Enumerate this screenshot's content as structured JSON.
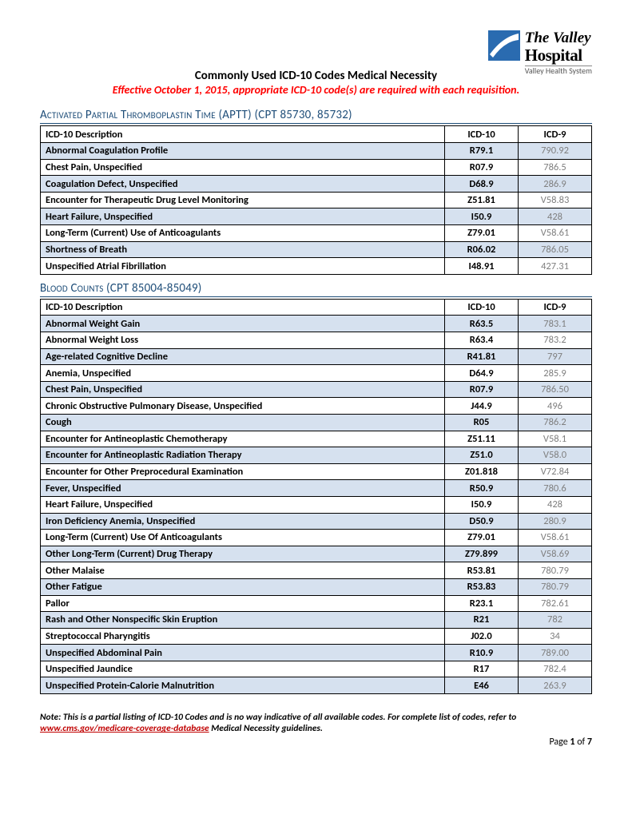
{
  "logo": {
    "line1": "The Valley",
    "line2": "Hospital",
    "line3": "Valley Health System",
    "mark_bg": "#2a6bb0",
    "mark_swoosh": "#ffffff"
  },
  "title": "Commonly Used ICD-10 Codes Medical Necessity",
  "subtitle": "Effective October 1, 2015, appropriate ICD-10 code(s) are required with each requisition.",
  "columns": {
    "desc": "ICD-10 Description",
    "icd10": "ICD-10",
    "icd9": "ICD-9"
  },
  "colors": {
    "section_title": "#1f4e79",
    "subtitle": "#ff0000",
    "row_shade": "#d6e1ef",
    "icd9_text": "#7f7f7f",
    "border": "#000000",
    "link": "#c00000"
  },
  "sections": [
    {
      "title": "Activated Partial Thromboplastin Time (APTT) (CPT 85730, 85732)",
      "rows": [
        {
          "desc": "Abnormal Coagulation Profile",
          "icd10": "R79.1",
          "icd9": "790.92",
          "shade": true
        },
        {
          "desc": "Chest Pain, Unspecified",
          "icd10": "R07.9",
          "icd9": "786.5",
          "shade": false
        },
        {
          "desc": "Coagulation Defect, Unspecified",
          "icd10": "D68.9",
          "icd9": "286.9",
          "shade": true
        },
        {
          "desc": "Encounter for Therapeutic Drug Level Monitoring",
          "icd10": "Z51.81",
          "icd9": "V58.83",
          "shade": false
        },
        {
          "desc": "Heart Failure, Unspecified",
          "icd10": "I50.9",
          "icd9": "428",
          "shade": true
        },
        {
          "desc": "Long-Term (Current) Use of Anticoagulants",
          "icd10": "Z79.01",
          "icd9": "V58.61",
          "shade": false
        },
        {
          "desc": "Shortness of Breath",
          "icd10": "R06.02",
          "icd9": "786.05",
          "shade": true
        },
        {
          "desc": "Unspecified Atrial Fibrillation",
          "icd10": "I48.91",
          "icd9": "427.31",
          "shade": false
        }
      ]
    },
    {
      "title": "Blood Counts (CPT 85004-85049)",
      "rows": [
        {
          "desc": "Abnormal Weight Gain",
          "icd10": "R63.5",
          "icd9": "783.1",
          "shade": true
        },
        {
          "desc": "Abnormal Weight Loss",
          "icd10": "R63.4",
          "icd9": "783.2",
          "shade": false
        },
        {
          "desc": "Age-related Cognitive Decline",
          "icd10": "R41.81",
          "icd9": "797",
          "shade": true
        },
        {
          "desc": "Anemia, Unspecified",
          "icd10": "D64.9",
          "icd9": "285.9",
          "shade": false
        },
        {
          "desc": "Chest Pain, Unspecified",
          "icd10": "R07.9",
          "icd9": "786.50",
          "shade": true
        },
        {
          "desc": "Chronic Obstructive Pulmonary Disease, Unspecified",
          "icd10": "J44.9",
          "icd9": "496",
          "shade": false
        },
        {
          "desc": "Cough",
          "icd10": "R05",
          "icd9": "786.2",
          "shade": true
        },
        {
          "desc": "Encounter for Antineoplastic Chemotherapy",
          "icd10": "Z51.11",
          "icd9": "V58.1",
          "shade": false
        },
        {
          "desc": "Encounter for Antineoplastic Radiation Therapy",
          "icd10": "Z51.0",
          "icd9": "V58.0",
          "shade": true
        },
        {
          "desc": "Encounter for Other Preprocedural Examination",
          "icd10": "Z01.818",
          "icd9": "V72.84",
          "shade": false
        },
        {
          "desc": "Fever, Unspecified",
          "icd10": "R50.9",
          "icd9": "780.6",
          "shade": true
        },
        {
          "desc": "Heart Failure, Unspecified",
          "icd10": "I50.9",
          "icd9": "428",
          "shade": false
        },
        {
          "desc": "Iron Deficiency Anemia, Unspecified",
          "icd10": "D50.9",
          "icd9": "280.9",
          "shade": true
        },
        {
          "desc": "Long-Term (Current) Use Of Anticoagulants",
          "icd10": "Z79.01",
          "icd9": "V58.61",
          "shade": false
        },
        {
          "desc": "Other Long-Term (Current) Drug Therapy",
          "icd10": "Z79.899",
          "icd9": "V58.69",
          "shade": true
        },
        {
          "desc": "Other Malaise",
          "icd10": "R53.81",
          "icd9": "780.79",
          "shade": false
        },
        {
          "desc": "Other Fatigue",
          "icd10": "R53.83",
          "icd9": "780.79",
          "shade": true
        },
        {
          "desc": "Pallor",
          "icd10": "R23.1",
          "icd9": "782.61",
          "shade": false
        },
        {
          "desc": "Rash and Other Nonspecific Skin Eruption",
          "icd10": "R21",
          "icd9": "782",
          "shade": true
        },
        {
          "desc": "Streptococcal Pharyngitis",
          "icd10": "J02.0",
          "icd9": "34",
          "shade": false
        },
        {
          "desc": "Unspecified Abdominal Pain",
          "icd10": "R10.9",
          "icd9": "789.00",
          "shade": true
        },
        {
          "desc": "Unspecified  Jaundice",
          "icd10": "R17",
          "icd9": "782.4",
          "shade": false
        },
        {
          "desc": "Unspecified Protein-Calorie Malnutrition",
          "icd10": "E46",
          "icd9": "263.9",
          "shade": true
        }
      ]
    }
  ],
  "footnote": {
    "pre": "Note: This is a partial listing of ICD-10 Codes and is no way indicative of all available codes. For complete list of codes, refer to ",
    "link_text": "www.cms.gov/medicare-coverage-database",
    "post": " Medical Necessity guidelines."
  },
  "page": {
    "label_pre": "Page ",
    "current": "1",
    "label_mid": " of ",
    "total": "7"
  }
}
